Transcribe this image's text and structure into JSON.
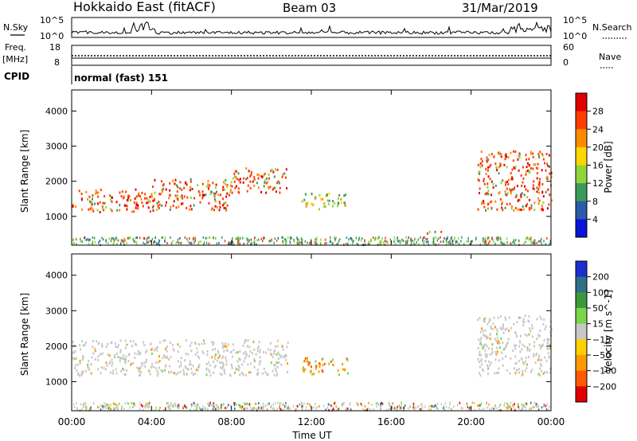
{
  "header": {
    "station": "Hokkaido East (fitACF)",
    "beam": "Beam 03",
    "date": "31/Mar/2019"
  },
  "top_panels": {
    "nsky_label": "N.Sky",
    "nsky_ticks": [
      "10^5",
      "10^0"
    ],
    "nsearch_label": "N.Search",
    "nsearch_ticks": [
      "10^5",
      "10^0"
    ],
    "freq_label_1": "Freq.",
    "freq_label_2": "[MHz]",
    "freq_ticks": [
      "18",
      "8"
    ],
    "nave_label": "Nave",
    "nave_ticks": [
      "60",
      "0"
    ],
    "cpid_label": "CPID",
    "cpid_value": "normal (fast) 151"
  },
  "chart_data": [
    {
      "type": "heatmap",
      "title": "Power",
      "ylabel": "Slant Range [km]",
      "ylim": [
        180,
        4600
      ],
      "y_ticks": [
        "1000",
        "2000",
        "3000",
        "4000"
      ],
      "x_ticks": [
        "00:00",
        "04:00",
        "08:00",
        "12:00",
        "16:00",
        "20:00",
        "00:00"
      ],
      "colorbar_label": "Power [dB]",
      "colorbar_ticks": [
        "28",
        "24",
        "20",
        "16",
        "12",
        "8",
        "4"
      ],
      "colorbar_colors": [
        "#e00000",
        "#ff3c00",
        "#ff8a00",
        "#ffd600",
        "#8fd63a",
        "#3a9a5c",
        "#2c5aa8",
        "#0a14d8"
      ],
      "scatter_regions": [
        {
          "t_start": 0.0,
          "t_end": 4.0,
          "r_min": 1150,
          "r_max": 1800,
          "level": "high"
        },
        {
          "t_start": 4.0,
          "t_end": 8.0,
          "r_min": 1200,
          "r_max": 2100,
          "level": "high"
        },
        {
          "t_start": 8.0,
          "t_end": 10.8,
          "r_min": 1700,
          "r_max": 2400,
          "level": "high"
        },
        {
          "t_start": 11.5,
          "t_end": 13.8,
          "r_min": 1200,
          "r_max": 1700,
          "level": "mid"
        },
        {
          "t_start": 17.6,
          "t_end": 18.6,
          "r_min": 500,
          "r_max": 600,
          "level": "high"
        },
        {
          "t_start": 20.3,
          "t_end": 24.0,
          "r_min": 1200,
          "r_max": 2900,
          "level": "high"
        }
      ]
    },
    {
      "type": "heatmap",
      "title": "Velocity",
      "ylabel": "Slant Range [km]",
      "ylim": [
        180,
        4600
      ],
      "y_ticks": [
        "1000",
        "2000",
        "3000",
        "4000"
      ],
      "x_ticks": [
        "00:00",
        "04:00",
        "08:00",
        "12:00",
        "16:00",
        "20:00",
        "00:00"
      ],
      "xlabel": "Time UT",
      "colorbar_label": "Velocity [m s^-1]",
      "colorbar_ticks": [
        "200",
        "100",
        "50",
        "15",
        "−15",
        "−50",
        "−100",
        "−200"
      ],
      "colorbar_colors": [
        "#1a2fd0",
        "#2e6f8a",
        "#3a9a3a",
        "#7ad64a",
        "#c8c8c8",
        "#ffd000",
        "#ff9a00",
        "#ff5a00",
        "#e00000"
      ],
      "scatter_regions": [
        {
          "t_start": 0.0,
          "t_end": 10.8,
          "r_min": 1200,
          "r_max": 2200,
          "level": "gray"
        },
        {
          "t_start": 11.5,
          "t_end": 13.8,
          "r_min": 1200,
          "r_max": 1700,
          "level": "orange"
        },
        {
          "t_start": 20.3,
          "t_end": 24.0,
          "r_min": 1200,
          "r_max": 2900,
          "level": "gray"
        }
      ]
    }
  ]
}
